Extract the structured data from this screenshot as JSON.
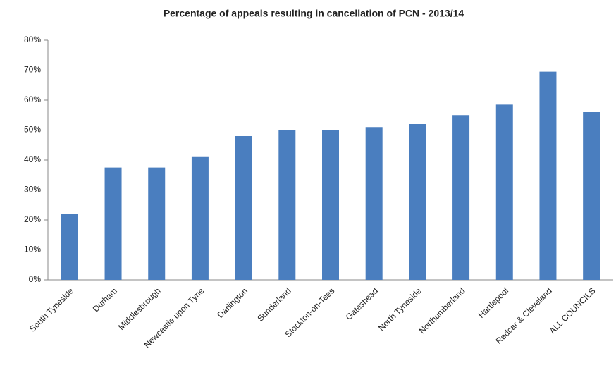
{
  "chart_data": {
    "type": "bar",
    "title": "Percentage of appeals resulting in cancellation of PCN - 2013/14",
    "categories": [
      "South Tyneside",
      "Durham",
      "Middlesbrough",
      "Newcastle upon Tyne",
      "Darlington",
      "Sunderland",
      "Stockton-on-Tees",
      "Gateshead",
      "North Tyneside",
      "Northumberland",
      "Hartlepool",
      "Redcar & Cleveland",
      "ALL COUNCILS"
    ],
    "values": [
      22,
      37.5,
      37.5,
      41,
      48,
      50,
      50,
      51,
      52,
      55,
      58.5,
      69.5,
      56
    ],
    "color": "#4a7ebf",
    "ylim": [
      0,
      80
    ],
    "yticks": [
      {
        "value": 0,
        "label": "0%"
      },
      {
        "value": 10,
        "label": "10%"
      },
      {
        "value": 20,
        "label": "20%"
      },
      {
        "value": 30,
        "label": "30%"
      },
      {
        "value": 40,
        "label": "40%"
      },
      {
        "value": 50,
        "label": "50%"
      },
      {
        "value": 60,
        "label": "60%"
      },
      {
        "value": 70,
        "label": "70%"
      },
      {
        "value": 80,
        "label": "80%"
      }
    ],
    "grid": false
  }
}
